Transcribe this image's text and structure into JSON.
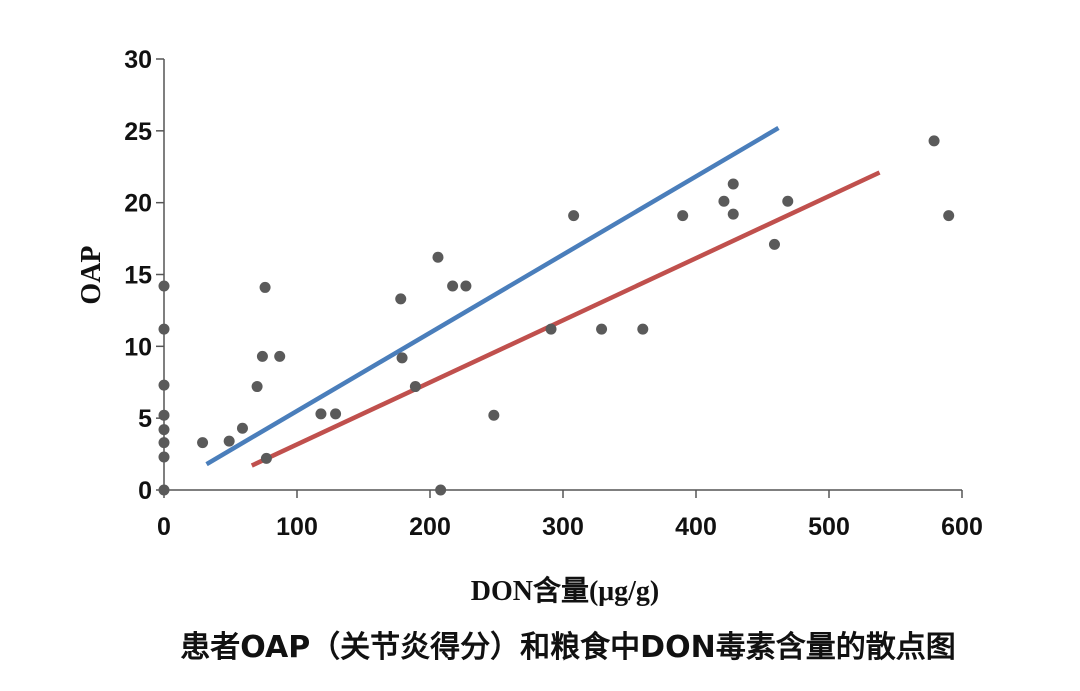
{
  "chart_data": {
    "type": "scatter",
    "title": "患者OAP（关节炎得分）和粮食中DON毒素含量的散点图",
    "xlabel": "DON含量(μg/g)",
    "ylabel": "OAP",
    "xlim": [
      0,
      600
    ],
    "ylim": [
      0,
      30
    ],
    "xticks": [
      "0",
      "100",
      "200",
      "300",
      "400",
      "500",
      "600"
    ],
    "yticks": [
      "0",
      "5",
      "10",
      "15",
      "20",
      "25",
      "30"
    ],
    "grid": false,
    "legend": "none",
    "points_color": "#5a5a5a",
    "points": [
      [
        0,
        0
      ],
      [
        0,
        2.3
      ],
      [
        0,
        3.3
      ],
      [
        0,
        4.2
      ],
      [
        0,
        5.2
      ],
      [
        0,
        7.3
      ],
      [
        0,
        11.2
      ],
      [
        0,
        14.2
      ],
      [
        29,
        3.3
      ],
      [
        49,
        3.4
      ],
      [
        59,
        4.3
      ],
      [
        70,
        7.2
      ],
      [
        74,
        9.3
      ],
      [
        76,
        14.1
      ],
      [
        77,
        2.2
      ],
      [
        87,
        9.3
      ],
      [
        118,
        5.3
      ],
      [
        129,
        5.3
      ],
      [
        178,
        13.3
      ],
      [
        179,
        9.2
      ],
      [
        189,
        7.2
      ],
      [
        206,
        16.2
      ],
      [
        208,
        0.0
      ],
      [
        217,
        14.2
      ],
      [
        227,
        14.2
      ],
      [
        248,
        5.2
      ],
      [
        291,
        11.2
      ],
      [
        308,
        19.1
      ],
      [
        329,
        11.2
      ],
      [
        360,
        11.2
      ],
      [
        390,
        19.1
      ],
      [
        421,
        20.1
      ],
      [
        428,
        21.3
      ],
      [
        428,
        19.2
      ],
      [
        459,
        17.1
      ],
      [
        469,
        20.1
      ],
      [
        579,
        24.3
      ],
      [
        590,
        19.1
      ]
    ],
    "series": [
      {
        "color": "#4a7ebb",
        "x": [
          32,
          462
        ],
        "y": [
          1.8,
          25.2
        ]
      },
      {
        "color": "#c0504d",
        "x": [
          66,
          538
        ],
        "y": [
          1.7,
          22.1
        ]
      }
    ]
  }
}
